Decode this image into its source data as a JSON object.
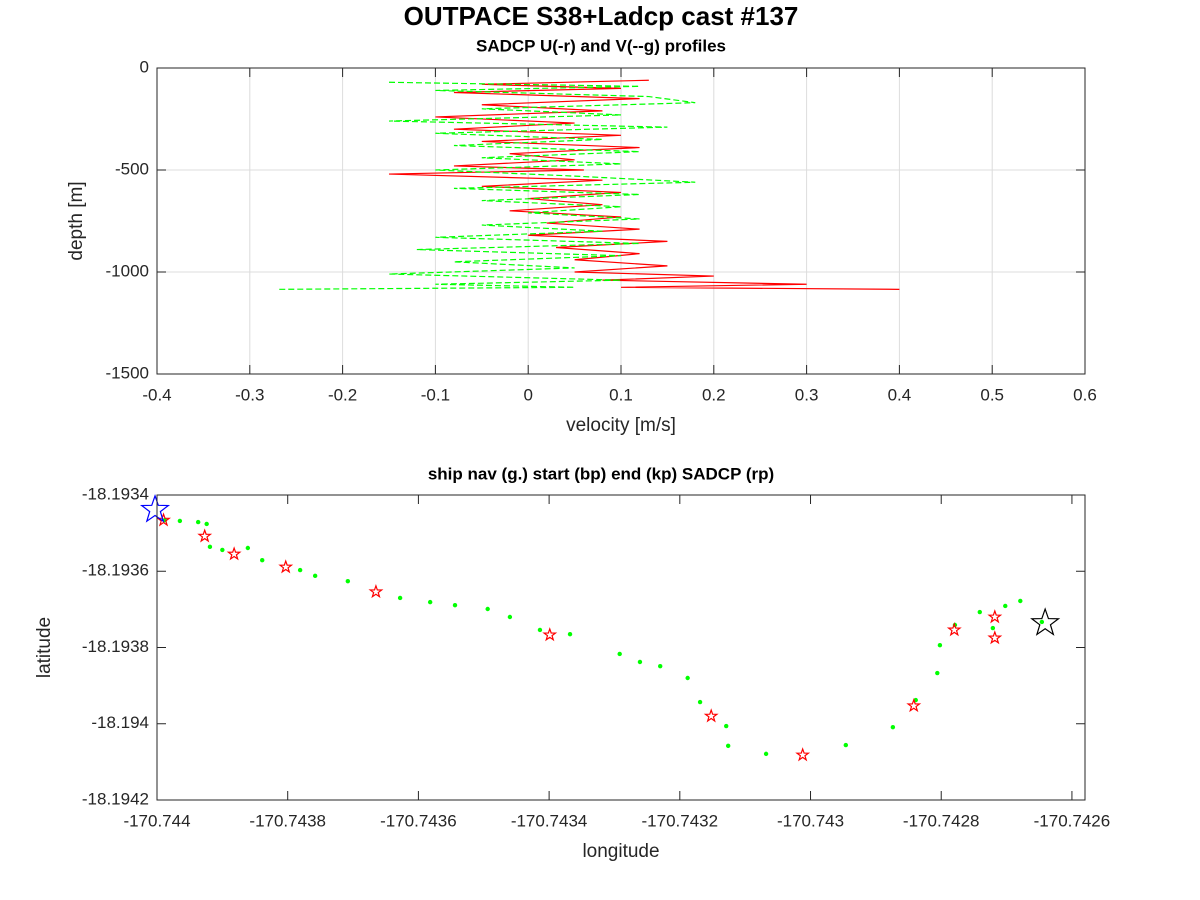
{
  "chart_data": [
    {
      "type": "line",
      "title": "OUTPACE S38+Ladcp cast #137",
      "subtitle": "SADCP U(-r) and V(--g) profiles",
      "xlabel": "velocity [m/s]",
      "ylabel": "depth [m]",
      "grid": true,
      "xlim": [
        -0.4,
        0.6
      ],
      "xticks": [
        -0.4,
        -0.3,
        -0.2,
        -0.1,
        0,
        0.1,
        0.2,
        0.3,
        0.4,
        0.5,
        0.6
      ],
      "ylim": [
        -1500,
        0
      ],
      "yticks": [
        -1500,
        -1000,
        -500,
        0
      ],
      "series": [
        {
          "color": "#ff0000",
          "style": "solid",
          "x": [
            0.13,
            -0.05,
            0.1,
            -0.08,
            0.12,
            -0.05,
            0.08,
            -0.1,
            0.05,
            -0.08,
            0.1,
            -0.05,
            0.12,
            -0.02,
            0.05,
            -0.08,
            0.06,
            -0.15,
            0.08,
            -0.05,
            0.1,
            0.0,
            0.08,
            -0.02,
            0.1,
            0.02,
            0.12,
            0.0,
            0.15,
            0.03,
            0.12,
            0.05,
            0.15,
            0.05,
            0.2,
            0.08,
            0.3,
            0.1,
            0.4
          ],
          "values": [
            -60,
            -80,
            -100,
            -120,
            -150,
            -180,
            -210,
            -240,
            -270,
            -300,
            -330,
            -360,
            -390,
            -420,
            -450,
            -480,
            -500,
            -520,
            -550,
            -580,
            -610,
            -640,
            -670,
            -700,
            -730,
            -760,
            -790,
            -820,
            -850,
            -880,
            -910,
            -940,
            -970,
            -1000,
            -1020,
            -1040,
            -1060,
            -1075,
            -1085
          ]
        },
        {
          "color": "#00ff00",
          "style": "dashed",
          "x": [
            -0.15,
            0.12,
            -0.1,
            0.13,
            0.18,
            -0.05,
            0.1,
            -0.15,
            0.15,
            -0.1,
            0.08,
            -0.08,
            0.12,
            -0.05,
            0.1,
            -0.1,
            0.05,
            0.18,
            -0.08,
            0.12,
            -0.05,
            0.1,
            0.0,
            0.12,
            -0.05,
            0.08,
            -0.1,
            0.12,
            -0.12,
            0.1,
            -0.08,
            0.05,
            -0.15,
            0.1,
            -0.1,
            0.05,
            -0.27
          ],
          "values": [
            -70,
            -90,
            -110,
            -140,
            -170,
            -200,
            -230,
            -260,
            -290,
            -320,
            -350,
            -380,
            -410,
            -440,
            -470,
            -500,
            -530,
            -560,
            -590,
            -620,
            -650,
            -680,
            -710,
            -740,
            -770,
            -800,
            -830,
            -860,
            -890,
            -920,
            -950,
            -980,
            -1010,
            -1040,
            -1060,
            -1075,
            -1085
          ]
        }
      ]
    },
    {
      "type": "scatter",
      "title": "ship nav (g.) start (bp) end (kp) SADCP (rp)",
      "xlabel": "longitude",
      "ylabel": "latitude",
      "grid": false,
      "xlim": [
        -170.744,
        -170.74258
      ],
      "xticks": [
        -170.744,
        -170.7438,
        -170.7436,
        -170.7434,
        -170.7432,
        -170.743,
        -170.7428,
        -170.7426
      ],
      "ylim": [
        -18.1942,
        -18.1934
      ],
      "yticks": [
        -18.1942,
        -18.194,
        -18.1938,
        -18.1936,
        -18.1934
      ],
      "series": [
        {
          "color": "#00ff00",
          "marker": "dot",
          "x": [
            -170.743988,
            -170.743965,
            -170.743937,
            -170.743924,
            -170.743919,
            -170.7439,
            -170.743861,
            -170.743839,
            -170.743781,
            -170.743758,
            -170.743708,
            -170.743628,
            -170.743582,
            -170.743544,
            -170.743494,
            -170.74346,
            -170.743414,
            -170.743368,
            -170.743292,
            -170.743261,
            -170.74323,
            -170.743188,
            -170.743169,
            -170.743129,
            -170.743126,
            -170.743068,
            -170.742946,
            -170.742874,
            -170.742839,
            -170.742806,
            -170.742802,
            -170.742779,
            -170.742741,
            -170.742721,
            -170.742702,
            -170.742679,
            -170.742646
          ],
          "values": [
            -18.193466,
            -18.193468,
            -18.193471,
            -18.193476,
            -18.193536,
            -18.193544,
            -18.193539,
            -18.193571,
            -18.193597,
            -18.193612,
            -18.193626,
            -18.19367,
            -18.193681,
            -18.193689,
            -18.193699,
            -18.19372,
            -18.193754,
            -18.193765,
            -18.193817,
            -18.193838,
            -18.193849,
            -18.19388,
            -18.193943,
            -18.194006,
            -18.194058,
            -18.194079,
            -18.194056,
            -18.194009,
            -18.193938,
            -18.193867,
            -18.193794,
            -18.193741,
            -18.193707,
            -18.193749,
            -18.193691,
            -18.193678,
            -18.193733
          ]
        },
        {
          "color": "#ff0000",
          "marker": "star",
          "x": [
            -170.74399,
            -170.743927,
            -170.743882,
            -170.743803,
            -170.743665,
            -170.743399,
            -170.743152,
            -170.743012,
            -170.742842,
            -170.74278,
            -170.742718,
            -170.742718
          ],
          "values": [
            -18.193466,
            -18.193508,
            -18.193555,
            -18.193589,
            -18.193654,
            -18.193767,
            -18.19398,
            -18.194082,
            -18.193953,
            -18.193754,
            -18.19372,
            -18.193775
          ]
        },
        {
          "color": "#0000ff",
          "marker": "star-large",
          "x": [
            -170.744003
          ],
          "values": [
            -18.193439
          ]
        },
        {
          "color": "#000000",
          "marker": "star-large",
          "x": [
            -170.742641
          ],
          "values": [
            -18.193736
          ]
        }
      ]
    }
  ]
}
